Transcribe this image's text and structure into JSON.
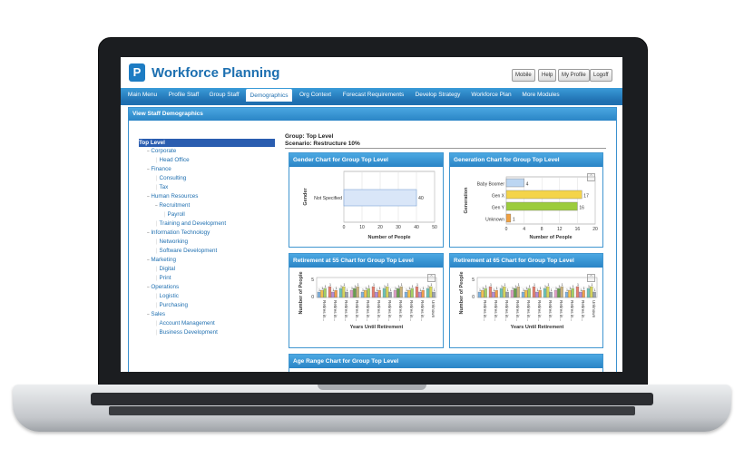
{
  "app": {
    "logo_letter": "P",
    "title": "Workforce Planning",
    "top_buttons": [
      "Mobile",
      "Help",
      "My Profile",
      "Logoff"
    ]
  },
  "nav": {
    "tabs": [
      "Main Menu",
      "Profile Staff",
      "Group Staff",
      "Demographics",
      "Org Context",
      "Forecast Requirements",
      "Develop Strategy",
      "Workforce Plan",
      "More Modules"
    ],
    "active": "Demographics"
  },
  "page": {
    "header": "View Staff Demographics",
    "group_line": "Group: Top Level",
    "scenario_line": "Scenario: Restructure 10%"
  },
  "tree": [
    {
      "label": "Top Level",
      "level": 0,
      "selected": true
    },
    {
      "label": "Corporate",
      "level": 1,
      "toggle": "−"
    },
    {
      "label": "Head Office",
      "level": 2
    },
    {
      "label": "Finance",
      "level": 1,
      "toggle": "−"
    },
    {
      "label": "Consulting",
      "level": 2
    },
    {
      "label": "Tax",
      "level": 2
    },
    {
      "label": "Human Resources",
      "level": 1,
      "toggle": "−"
    },
    {
      "label": "Recruitment",
      "level": 2,
      "toggle": "−"
    },
    {
      "label": "Payroll",
      "level": 3
    },
    {
      "label": "Training and Development",
      "level": 2
    },
    {
      "label": "Information Technology",
      "level": 1,
      "toggle": "−"
    },
    {
      "label": "Networking",
      "level": 2
    },
    {
      "label": "Software Development",
      "level": 2
    },
    {
      "label": "Marketing",
      "level": 1,
      "toggle": "−"
    },
    {
      "label": "Digital",
      "level": 2
    },
    {
      "label": "Print",
      "level": 2
    },
    {
      "label": "Operations",
      "level": 1,
      "toggle": "−"
    },
    {
      "label": "Logistic",
      "level": 2
    },
    {
      "label": "Purchasing",
      "level": 2
    },
    {
      "label": "Sales",
      "level": 1,
      "toggle": "−"
    },
    {
      "label": "Account Management",
      "level": 2
    },
    {
      "label": "Business Development",
      "level": 2
    }
  ],
  "charts": {
    "gender": {
      "title": "Gender Chart for Group Top Level",
      "ylabel": "Gender",
      "xlabel": "Number of People",
      "categories": [
        "Not Specified"
      ],
      "values": [
        40
      ],
      "ticks": [
        "0",
        "10",
        "20",
        "30",
        "40",
        "50"
      ],
      "xlim": [
        0,
        50
      ],
      "color": "#d9e6f8"
    },
    "generation": {
      "title": "Generation Chart for Group Top Level",
      "ylabel": "Generation",
      "xlabel": "Number of People",
      "categories": [
        "Baby Boomer",
        "Gen X",
        "Gen Y",
        "Unknown"
      ],
      "values": [
        4,
        17,
        16,
        1
      ],
      "colors": [
        "#bcd6f2",
        "#f4d44a",
        "#9ccc3c",
        "#f0a040"
      ],
      "ticks": [
        "0",
        "4",
        "8",
        "12",
        "16",
        "20"
      ],
      "xlim": [
        0,
        20
      ]
    },
    "retire55": {
      "title": "Retirement at 55 Chart for Group Top Level",
      "ylabel": "Number of People",
      "xlabel": "Years Until Retirement",
      "yticks": [
        "5",
        "0"
      ],
      "bar_labels": [
        "Retires in...",
        "Retires in...",
        "Retires in...",
        "Retires in...",
        "Retires in...",
        "Retires in...",
        "Retires in...",
        "Retires in...",
        "Retires in...",
        "Retires in...",
        "Unknown"
      ]
    },
    "retire65": {
      "title": "Retirement at 65 Chart for Group Top Level",
      "ylabel": "Number of People",
      "xlabel": "Years Until Retirement",
      "yticks": [
        "5",
        "0"
      ],
      "bar_labels": [
        "Retires in...",
        "Retires in...",
        "Retires in...",
        "Retires in...",
        "Retires in...",
        "Retires in...",
        "Retires in...",
        "Retires in...",
        "Retires in...",
        "Retires in...",
        "Unknown"
      ]
    },
    "age_range": {
      "title": "Age Range Chart for Group Top Level"
    }
  }
}
